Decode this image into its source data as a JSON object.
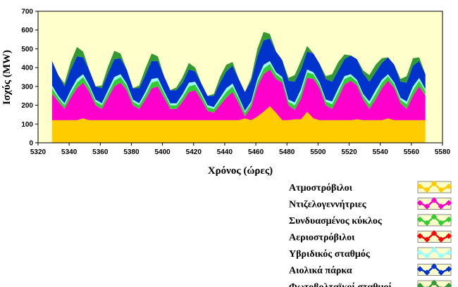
{
  "chart_data": {
    "type": "area",
    "stacked": true,
    "xlabel": "Χρόνος (ώρες)",
    "ylabel": "Ισχύς (MW)",
    "xlim": [
      5320,
      5580
    ],
    "ylim": [
      0,
      700
    ],
    "xticks": [
      5320,
      5340,
      5360,
      5380,
      5400,
      5420,
      5440,
      5460,
      5480,
      5500,
      5520,
      5540,
      5560,
      5580
    ],
    "yticks": [
      0,
      100,
      200,
      300,
      400,
      500,
      600,
      700
    ],
    "grid": false,
    "legend_position": "bottom-right",
    "background_color": "#FFFFCC",
    "x": [
      5329,
      5333,
      5337,
      5341,
      5345,
      5349,
      5353,
      5357,
      5361,
      5365,
      5369,
      5373,
      5377,
      5381,
      5385,
      5389,
      5393,
      5397,
      5401,
      5405,
      5409,
      5413,
      5417,
      5421,
      5425,
      5429,
      5433,
      5437,
      5441,
      5445,
      5449,
      5453,
      5457,
      5461,
      5465,
      5469,
      5473,
      5477,
      5481,
      5485,
      5489,
      5493,
      5497,
      5501,
      5505,
      5509,
      5513,
      5517,
      5521,
      5525,
      5529,
      5533,
      5537,
      5541,
      5545,
      5549,
      5553,
      5557,
      5561,
      5565,
      5569
    ],
    "series": [
      {
        "name": "Ατμοστρόβιλοι",
        "color": "#FFCC00",
        "values": [
          120,
          120,
          120,
          120,
          120,
          130,
          120,
          120,
          120,
          120,
          120,
          120,
          120,
          120,
          120,
          120,
          120,
          120,
          120,
          120,
          120,
          120,
          120,
          120,
          120,
          120,
          120,
          120,
          120,
          120,
          120,
          130,
          120,
          140,
          165,
          195,
          160,
          120,
          120,
          125,
          125,
          165,
          130,
          120,
          120,
          120,
          120,
          120,
          120,
          125,
          120,
          120,
          120,
          120,
          130,
          120,
          120,
          120,
          120,
          120,
          120
        ]
      },
      {
        "name": "Ντιζελογεννήτριες",
        "color": "#FF00CC",
        "values": [
          140,
          100,
          60,
          120,
          170,
          190,
          150,
          80,
          60,
          120,
          180,
          200,
          160,
          80,
          60,
          110,
          170,
          180,
          120,
          60,
          60,
          100,
          150,
          160,
          110,
          50,
          40,
          80,
          120,
          150,
          90,
          10,
          70,
          160,
          200,
          195,
          180,
          200,
          80,
          50,
          110,
          180,
          210,
          170,
          80,
          60,
          120,
          190,
          210,
          180,
          110,
          60,
          110,
          170,
          200,
          170,
          90,
          60,
          130,
          180,
          130
        ]
      },
      {
        "name": "Συνδυασμένος κύκλος",
        "color": "#33CC33",
        "values": [
          30,
          20,
          20,
          25,
          30,
          30,
          25,
          20,
          20,
          25,
          30,
          30,
          25,
          20,
          20,
          25,
          30,
          30,
          25,
          20,
          20,
          25,
          30,
          30,
          25,
          20,
          20,
          25,
          30,
          30,
          25,
          20,
          20,
          25,
          30,
          30,
          25,
          20,
          20,
          25,
          30,
          30,
          25,
          20,
          20,
          25,
          30,
          30,
          25,
          20,
          20,
          25,
          30,
          30,
          25,
          20,
          20,
          25,
          30,
          30,
          25
        ]
      },
      {
        "name": "Αεριοστρόβιλοι",
        "color": "#FF0000",
        "values": [
          0,
          0,
          0,
          0,
          0,
          0,
          0,
          0,
          0,
          0,
          0,
          0,
          0,
          0,
          0,
          0,
          0,
          0,
          0,
          0,
          0,
          0,
          0,
          0,
          0,
          0,
          0,
          0,
          0,
          0,
          0,
          0,
          0,
          0,
          0,
          0,
          0,
          0,
          0,
          0,
          0,
          0,
          0,
          0,
          0,
          0,
          0,
          0,
          0,
          0,
          0,
          0,
          0,
          0,
          0,
          0,
          0,
          0,
          0,
          0,
          0
        ]
      },
      {
        "name": "Υβριδικός σταθμός",
        "color": "#99FFFF",
        "values": [
          15,
          10,
          10,
          15,
          20,
          15,
          10,
          10,
          10,
          15,
          20,
          15,
          10,
          10,
          10,
          15,
          20,
          15,
          10,
          10,
          10,
          15,
          20,
          15,
          10,
          10,
          10,
          15,
          20,
          15,
          10,
          10,
          10,
          15,
          20,
          15,
          10,
          10,
          10,
          15,
          20,
          15,
          10,
          10,
          10,
          15,
          20,
          15,
          10,
          10,
          10,
          15,
          20,
          15,
          10,
          10,
          10,
          15,
          20,
          15,
          10
        ]
      },
      {
        "name": "Αιολικά πάρκα",
        "color": "#0033CC",
        "values": [
          130,
          110,
          90,
          110,
          120,
          90,
          80,
          70,
          80,
          90,
          95,
          85,
          75,
          60,
          80,
          90,
          95,
          90,
          80,
          70,
          70,
          60,
          70,
          55,
          50,
          50,
          60,
          80,
          90,
          95,
          95,
          100,
          110,
          120,
          130,
          120,
          110,
          90,
          100,
          110,
          105,
          95,
          100,
          100,
          110,
          105,
          95,
          90,
          100,
          110,
          110,
          105,
          95,
          90,
          90,
          95,
          85,
          100,
          110,
          90,
          80
        ]
      },
      {
        "name": "Φωτοβολταϊκοί σταθμοί",
        "color": "#339933",
        "values": [
          0,
          0,
          15,
          40,
          50,
          30,
          0,
          0,
          15,
          35,
          45,
          25,
          0,
          0,
          15,
          35,
          40,
          25,
          0,
          0,
          15,
          30,
          35,
          20,
          0,
          0,
          10,
          30,
          35,
          20,
          0,
          0,
          15,
          40,
          45,
          25,
          0,
          0,
          15,
          35,
          45,
          30,
          0,
          0,
          15,
          40,
          45,
          25,
          0,
          0,
          15,
          35,
          40,
          25,
          0,
          0,
          15,
          35,
          40,
          20,
          0
        ]
      }
    ]
  }
}
